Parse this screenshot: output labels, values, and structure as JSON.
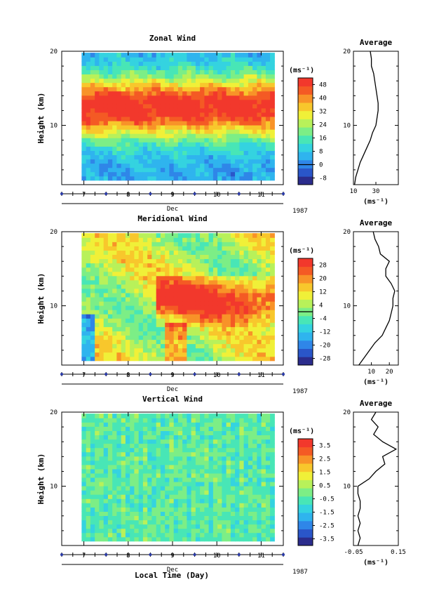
{
  "figure": {
    "xlabel": "Local Time (Day)",
    "month_label": "Dec",
    "year_label": "1987",
    "ylabel": "Height (km)",
    "avg_title": "Average",
    "unit_label": "(ms⁻¹)"
  },
  "chart_data": [
    {
      "type": "heatmap",
      "title": "Zonal Wind",
      "xlabel": "Local Time (Day)",
      "ylabel": "Height (km)",
      "xlim": [
        6.5,
        11.5
      ],
      "ylim": [
        2,
        20
      ],
      "x_ticks": [
        "7",
        "8",
        "9",
        "10",
        "11"
      ],
      "y_ticks": [
        "10",
        "20"
      ],
      "colorbar": {
        "label": "(ms⁻¹)",
        "ticks": [
          "48",
          "40",
          "32",
          "24",
          "16",
          "8",
          "0",
          "-8"
        ],
        "min": -12,
        "max": 52,
        "zero_line": 0
      },
      "average_profile": {
        "title": "Average",
        "xlim": [
          10,
          50
        ],
        "x_ticks": [
          "10",
          "30"
        ],
        "xlabel": "(ms⁻¹)",
        "y_ticks": [
          "10",
          "20"
        ],
        "heights": [
          2,
          3,
          4,
          5,
          6,
          7,
          8,
          9,
          10,
          11,
          12,
          13,
          14,
          15,
          16,
          17,
          18,
          19,
          20
        ],
        "values": [
          11,
          12,
          14,
          16,
          19,
          22,
          25,
          27,
          30,
          31,
          32,
          32,
          31,
          30,
          29,
          28,
          26,
          26,
          25
        ]
      }
    },
    {
      "type": "heatmap",
      "title": "Meridional Wind",
      "xlabel": "Local Time (Day)",
      "ylabel": "Height (km)",
      "xlim": [
        6.5,
        11.5
      ],
      "ylim": [
        2,
        20
      ],
      "x_ticks": [
        "7",
        "8",
        "9",
        "10",
        "11"
      ],
      "y_ticks": [
        "10",
        "20"
      ],
      "colorbar": {
        "label": "(ms⁻¹)",
        "ticks": [
          "28",
          "20",
          "12",
          "4",
          "-4",
          "-12",
          "-20",
          "-28"
        ],
        "min": -32,
        "max": 32,
        "zero_line": 0
      },
      "average_profile": {
        "title": "Average",
        "xlim": [
          0,
          25
        ],
        "x_ticks": [
          "10",
          "20"
        ],
        "xlabel": "(ms⁻¹)",
        "y_ticks": [
          "10",
          "20"
        ],
        "heights": [
          2,
          3,
          4,
          5,
          6,
          7,
          8,
          9,
          10,
          11,
          12,
          13,
          14,
          15,
          16,
          17,
          18,
          19,
          20
        ],
        "values": [
          3,
          6,
          9,
          12,
          16,
          18,
          20,
          21,
          22,
          22,
          23,
          21,
          18,
          18,
          20,
          15,
          14,
          12,
          11
        ]
      }
    },
    {
      "type": "heatmap",
      "title": "Vertical Wind",
      "xlabel": "Local Time (Day)",
      "ylabel": "Height (km)",
      "xlim": [
        6.5,
        11.5
      ],
      "ylim": [
        2,
        20
      ],
      "x_ticks": [
        "7",
        "8",
        "9",
        "10",
        "11"
      ],
      "y_ticks": [
        "10",
        "20"
      ],
      "colorbar": {
        "label": "(ms⁻¹)",
        "ticks": [
          "3.5",
          "2.5",
          "1.5",
          "0.5",
          "-0.5",
          "-1.5",
          "-2.5",
          "-3.5"
        ],
        "min": -4,
        "max": 4,
        "zero_line": null
      },
      "average_profile": {
        "title": "Average",
        "xlim": [
          -0.05,
          0.15
        ],
        "x_ticks": [
          "-0.05",
          "0.15"
        ],
        "xlabel": "(ms⁻¹)",
        "y_ticks": [
          "10",
          "20"
        ],
        "heights": [
          2,
          3,
          4,
          5,
          6,
          7,
          8,
          9,
          10,
          11,
          12,
          13,
          14,
          15,
          16,
          17,
          18,
          19,
          20
        ],
        "values": [
          -0.03,
          -0.02,
          -0.03,
          -0.02,
          -0.03,
          -0.02,
          -0.02,
          -0.03,
          -0.03,
          0.02,
          0.05,
          0.09,
          0.08,
          0.14,
          0.08,
          0.04,
          0.06,
          0.03,
          0.05
        ]
      }
    }
  ]
}
